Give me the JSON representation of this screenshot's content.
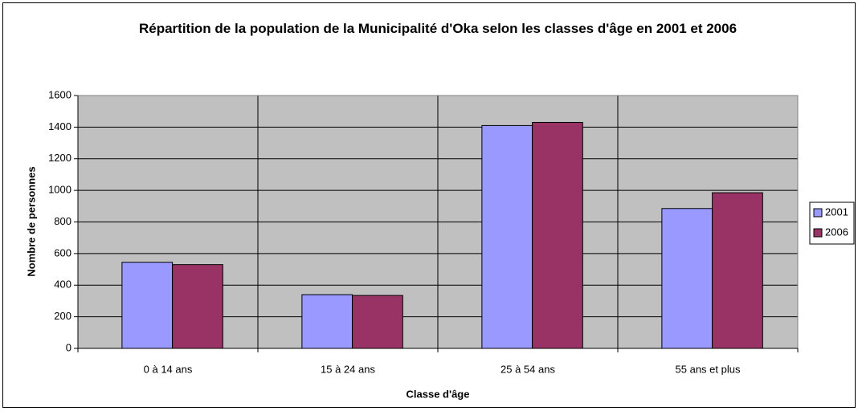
{
  "chart_data": {
    "type": "bar",
    "title": "Répartition de la population de la Municipalité d'Oka selon les classes d'âge en 2001 et 2006",
    "xlabel": "Classe d'âge",
    "ylabel": "Nombre de personnes",
    "categories": [
      "0 à 14 ans",
      "15 à 24 ans",
      "25 à 54 ans",
      "55 ans et plus"
    ],
    "series": [
      {
        "name": "2001",
        "color": "#9999ff",
        "values": [
          545,
          340,
          1410,
          885
        ]
      },
      {
        "name": "2006",
        "color": "#993366",
        "values": [
          530,
          335,
          1430,
          985
        ]
      }
    ],
    "ylim": [
      0,
      1600
    ],
    "yticks": [
      0,
      200,
      400,
      600,
      800,
      1000,
      1200,
      1400,
      1600
    ],
    "grid": true,
    "legend": "right"
  }
}
